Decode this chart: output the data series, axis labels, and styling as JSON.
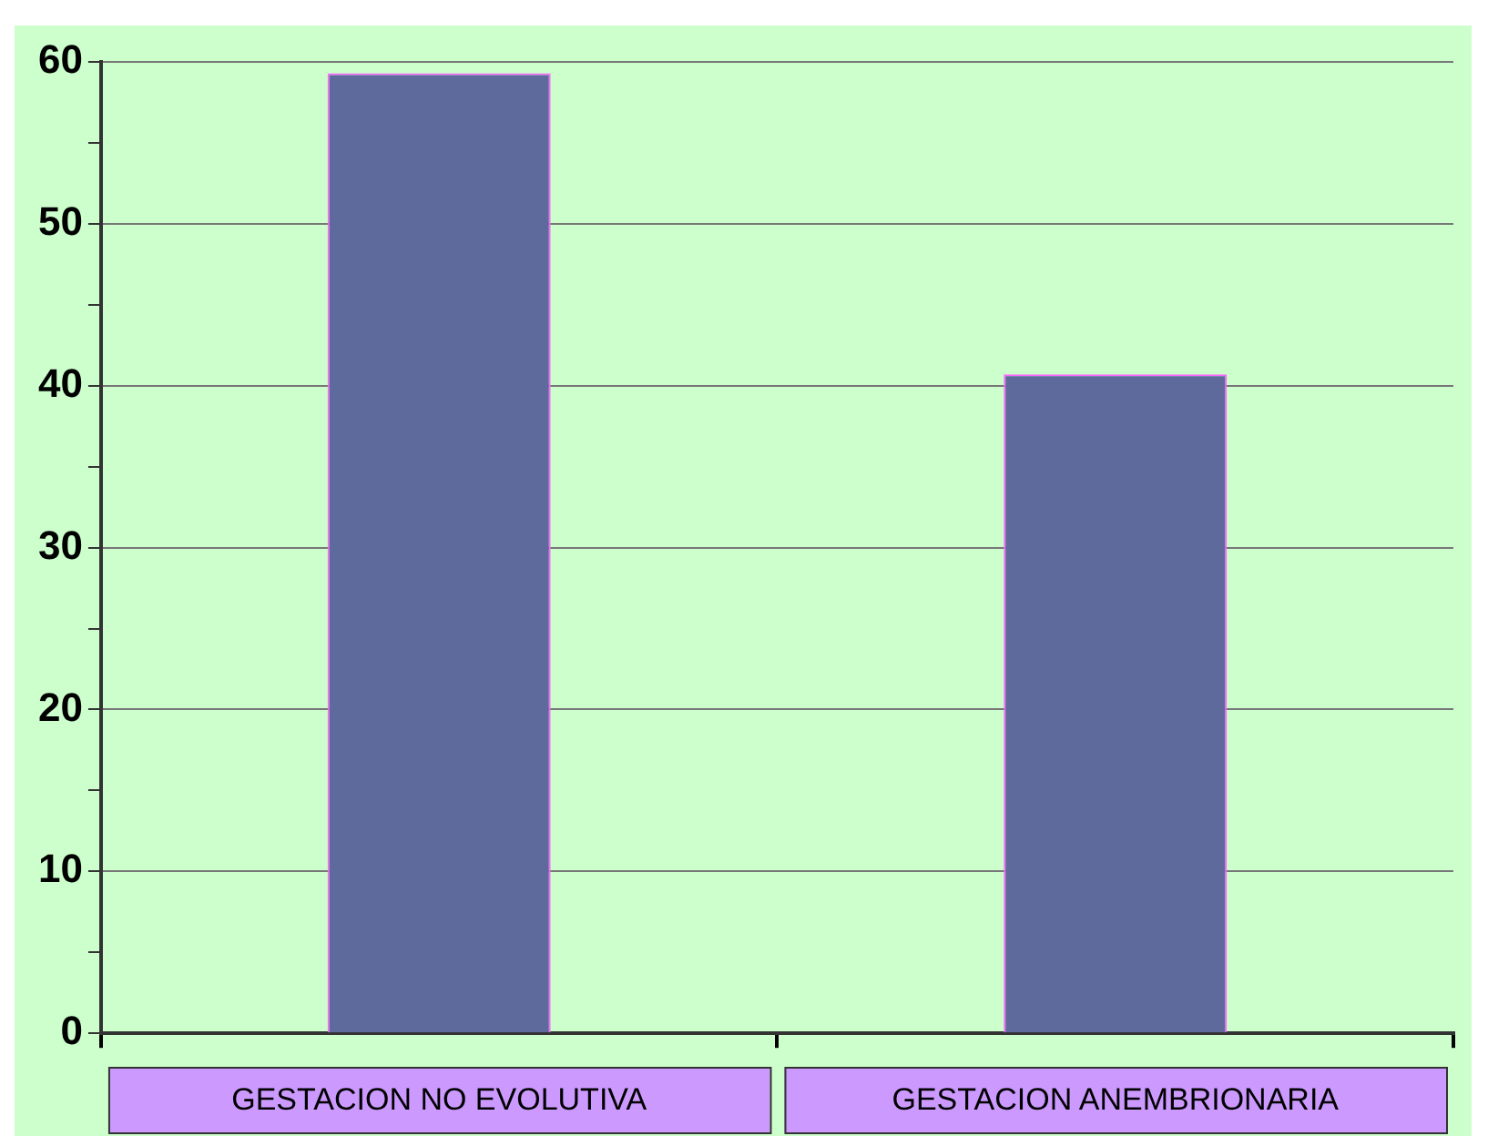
{
  "chart_data": {
    "type": "bar",
    "categories": [
      "GESTACION NO EVOLUTIVA",
      "GESTACION ANEMBRIONARIA"
    ],
    "values": [
      59.3,
      40.7
    ],
    "color": "#5f6a9c",
    "ylim": [
      0,
      60
    ],
    "yticks": [
      0,
      {
        "value": 5,
        "label": null
      },
      10,
      {
        "value": 15,
        "label": null
      },
      20,
      {
        "value": 25,
        "label": null
      },
      30,
      {
        "value": 35,
        "label": null
      },
      40,
      {
        "value": 45,
        "label": null
      },
      50,
      {
        "value": 55,
        "label": null
      },
      60
    ],
    "grid": "y",
    "legend": false
  }
}
